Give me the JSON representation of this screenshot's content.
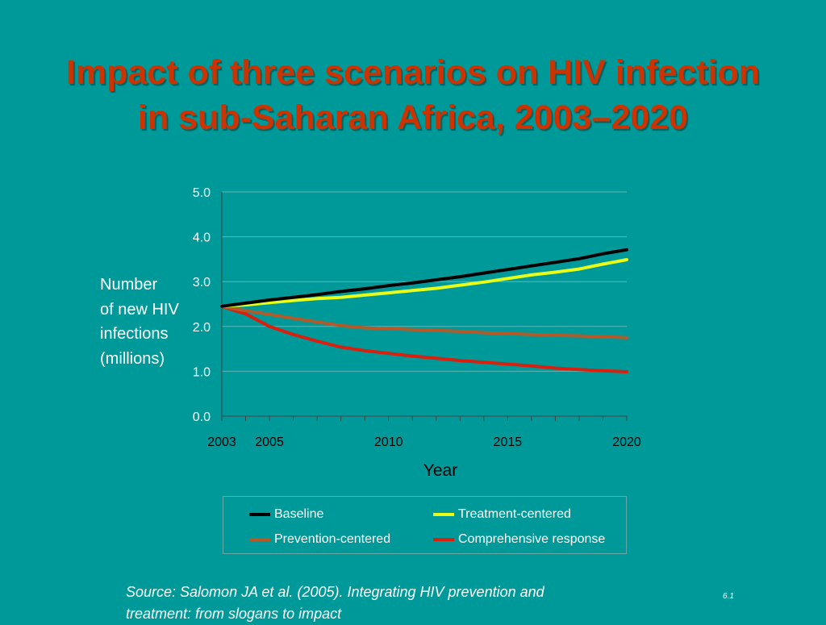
{
  "title": {
    "line1": "Impact of three scenarios on HIV infection",
    "line2": "in sub-Saharan Africa, 2003–2020"
  },
  "y_axis_label": [
    "Number",
    "of new HIV",
    "infections",
    "(millions)"
  ],
  "source": {
    "line1": "Source:  Salomon JA et al. (2005).  Integrating HIV prevention and",
    "line2": "treatment: from slogans to impact"
  },
  "slide_number": "6.1",
  "colors": {
    "background": "#009999",
    "title": "#cc3300",
    "baseline": "#000000",
    "treatment": "#e8ff1a",
    "prevention": "#b45a28",
    "comprehensive": "#d9200f"
  },
  "chart_data": {
    "type": "line",
    "xlabel": "Year",
    "ylabel": "Number of new HIV infections (millions)",
    "xlim": [
      2003,
      2020
    ],
    "ylim": [
      0,
      5
    ],
    "ytick_labels": [
      "0.0",
      "1.0",
      "2.0",
      "3.0",
      "4.0",
      "5.0"
    ],
    "xtick_labels": [
      "2003",
      "2005",
      "2010",
      "2015",
      "2020"
    ],
    "grid": "horizontal",
    "legend_position": "bottom",
    "x": [
      2003,
      2004,
      2005,
      2006,
      2007,
      2008,
      2009,
      2010,
      2011,
      2012,
      2013,
      2014,
      2015,
      2016,
      2017,
      2018,
      2019,
      2020
    ],
    "series": [
      {
        "name": "Baseline",
        "color": "#000000",
        "values": [
          2.45,
          2.52,
          2.59,
          2.65,
          2.71,
          2.78,
          2.84,
          2.91,
          2.97,
          3.04,
          3.11,
          3.19,
          3.27,
          3.35,
          3.43,
          3.51,
          3.62,
          3.71
        ]
      },
      {
        "name": "Treatment-centered",
        "color": "#e8ff1a",
        "values": [
          2.45,
          2.48,
          2.53,
          2.58,
          2.62,
          2.65,
          2.7,
          2.75,
          2.8,
          2.85,
          2.92,
          2.99,
          3.07,
          3.15,
          3.21,
          3.28,
          3.39,
          3.49
        ]
      },
      {
        "name": "Prevention-centered",
        "color": "#b45a28",
        "values": [
          2.45,
          2.35,
          2.27,
          2.18,
          2.1,
          2.02,
          1.97,
          1.95,
          1.93,
          1.91,
          1.89,
          1.86,
          1.84,
          1.82,
          1.8,
          1.79,
          1.77,
          1.75
        ]
      },
      {
        "name": "Comprehensive response",
        "color": "#d9200f",
        "values": [
          2.45,
          2.28,
          2.0,
          1.82,
          1.67,
          1.54,
          1.46,
          1.4,
          1.34,
          1.29,
          1.24,
          1.2,
          1.16,
          1.12,
          1.07,
          1.04,
          1.01,
          0.99
        ]
      }
    ]
  }
}
